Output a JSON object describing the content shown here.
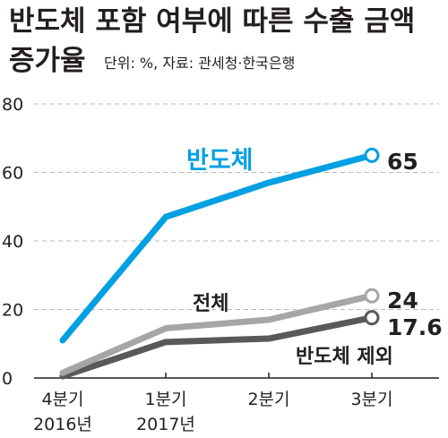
{
  "header": {
    "title_line1": "반도체 포함 여부에 따른 수출 금액",
    "title_line2": "증가율",
    "source": "단위: %, 자료: 관세청·한국은행"
  },
  "chart_data": {
    "type": "line",
    "title": "반도체 포함 여부에 따른 수출 금액 증가율",
    "unit": "%",
    "categories": [
      "4분기",
      "1분기",
      "2분기",
      "3분기"
    ],
    "category_years": [
      "2016년",
      "2017년",
      "",
      ""
    ],
    "ylim": [
      0,
      80
    ],
    "yticks": [
      "80",
      "60",
      "40",
      "20",
      "0"
    ],
    "grid": true,
    "series": [
      {
        "name": "반도체",
        "values": [
          11,
          47,
          57,
          65
        ],
        "color": "#00a0e3",
        "end_label": "65"
      },
      {
        "name": "전체",
        "values": [
          1.5,
          14.5,
          17,
          24
        ],
        "color": "#a6a6a6",
        "end_label": "24"
      },
      {
        "name": "반도체 제외",
        "values": [
          0.5,
          10.5,
          11.5,
          17.6
        ],
        "color": "#595959",
        "end_label": "17.6"
      }
    ]
  }
}
